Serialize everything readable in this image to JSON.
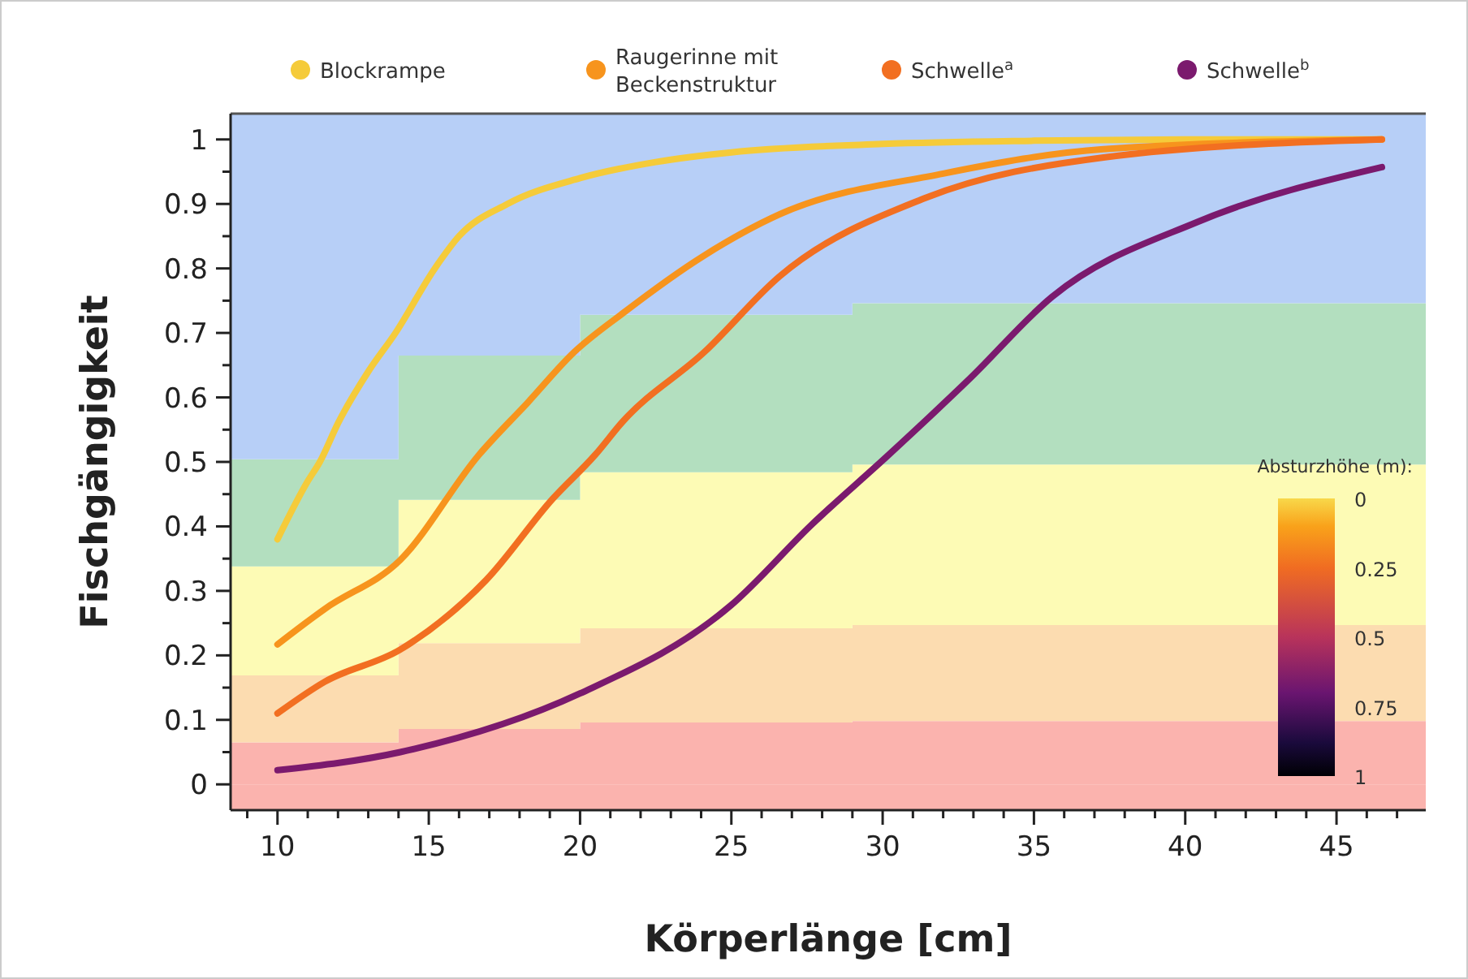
{
  "chart_data": {
    "type": "line",
    "xlabel": "Körperlänge [cm]",
    "ylabel": "Fischgängigkeit",
    "legend": "top",
    "annotations": [
      "Absturzhöhe (m):",
      "0",
      "0.25",
      "0.5",
      "0.75",
      "1"
    ],
    "stacked": true,
    "bands": [
      {
        "axis": "y",
        "from": -0.04,
        "to": 0,
        "color": "#fbb3ae"
      }
    ],
    "xlim": [
      8.45,
      47.95
    ],
    "ylim": [
      -0.04,
      1.04
    ],
    "xticks": [
      {
        "value": 9,
        "label": null
      },
      10,
      {
        "value": 11,
        "label": null
      },
      {
        "value": 12,
        "label": null
      },
      {
        "value": 13,
        "label": null
      },
      {
        "value": 14,
        "label": null
      },
      15,
      {
        "value": 16,
        "label": null
      },
      {
        "value": 17,
        "label": null
      },
      {
        "value": 18,
        "label": null
      },
      {
        "value": 19,
        "label": null
      },
      20,
      {
        "value": 21,
        "label": null
      },
      {
        "value": 22,
        "label": null
      },
      {
        "value": 23,
        "label": null
      },
      {
        "value": 24,
        "label": null
      },
      25,
      {
        "value": 26,
        "label": null
      },
      {
        "value": 27,
        "label": null
      },
      {
        "value": 28,
        "label": null
      },
      {
        "value": 29,
        "label": null
      },
      30,
      {
        "value": 31,
        "label": null
      },
      {
        "value": 32,
        "label": null
      },
      {
        "value": 33,
        "label": null
      },
      {
        "value": 34,
        "label": null
      },
      35,
      {
        "value": 36,
        "label": null
      },
      {
        "value": 37,
        "label": null
      },
      {
        "value": 38,
        "label": null
      },
      {
        "value": 39,
        "label": null
      },
      40,
      {
        "value": 41,
        "label": null
      },
      {
        "value": 42,
        "label": null
      },
      {
        "value": 43,
        "label": null
      },
      {
        "value": 44,
        "label": null
      },
      45,
      {
        "value": 46,
        "label": null
      },
      {
        "value": 47,
        "label": null
      }
    ],
    "yticks": [
      0,
      {
        "value": 0.05,
        "label": null
      },
      0.1,
      {
        "value": 0.15,
        "label": null
      },
      0.2,
      {
        "value": 0.25,
        "label": null
      },
      0.3,
      {
        "value": 0.35,
        "label": null
      },
      0.4,
      {
        "value": 0.45,
        "label": null
      },
      0.5,
      {
        "value": 0.55,
        "label": null
      },
      0.6,
      {
        "value": 0.65,
        "label": null
      },
      0.7,
      {
        "value": 0.75,
        "label": null
      },
      0.8,
      {
        "value": 0.85,
        "label": null
      },
      0.9,
      {
        "value": 0.95,
        "label": null
      },
      1
    ],
    "series": [
      {
        "type": "area",
        "color": "#fbb3ae",
        "x": [
          8.45,
          14,
          14,
          20,
          20,
          29,
          29,
          47.95
        ],
        "values": [
          0.065,
          0.065,
          0.086,
          0.086,
          0.096,
          0.096,
          0.098,
          0.098
        ]
      },
      {
        "type": "area",
        "color": "#fcdcb0",
        "x": [
          8.45,
          14,
          14,
          20,
          20,
          29,
          29,
          47.95
        ],
        "values": [
          0.104,
          0.104,
          0.133,
          0.133,
          0.146,
          0.146,
          0.149,
          0.149
        ]
      },
      {
        "type": "area",
        "color": "#fdfbb5",
        "x": [
          8.45,
          14,
          14,
          20,
          20,
          29,
          29,
          47.95
        ],
        "values": [
          0.169,
          0.169,
          0.222,
          0.222,
          0.242,
          0.242,
          0.249,
          0.249
        ]
      },
      {
        "type": "area",
        "color": "#b3dfbf",
        "x": [
          8.45,
          14,
          14,
          20,
          20,
          29,
          29,
          47.95
        ],
        "values": [
          0.166,
          0.166,
          0.224,
          0.224,
          0.244,
          0.244,
          0.25,
          0.25
        ]
      },
      {
        "type": "area",
        "color": "#b7cff7",
        "x": [
          8.45,
          14,
          14,
          20,
          20,
          29,
          29,
          47.95
        ],
        "values": [
          0.536,
          0.536,
          0.375,
          0.375,
          0.312,
          0.312,
          0.294,
          0.294
        ]
      },
      {
        "type": "line",
        "name": "Blockrampe",
        "color": "#f5cb3a",
        "x": [
          10,
          11,
          11.4,
          12,
          13,
          13.9,
          15.2,
          16,
          17.6,
          20,
          22.5,
          25,
          30,
          35,
          40,
          46.5
        ],
        "values": [
          0.38,
          0.47,
          0.5,
          0.56,
          0.64,
          0.7,
          0.8,
          0.85,
          0.9,
          0.94,
          0.965,
          0.98,
          0.993,
          0.998,
          1.0,
          1.0
        ]
      },
      {
        "type": "line",
        "name": "Raugerinne mit Beckenstruktur",
        "color": "#f7941d",
        "x": [
          10,
          11.56,
          14.06,
          16.66,
          18.27,
          19.8,
          21.4,
          24.1,
          26.6,
          32,
          37.3,
          46.5
        ],
        "values": [
          0.217,
          0.272,
          0.348,
          0.511,
          0.592,
          0.67,
          0.73,
          0.82,
          0.884,
          0.947,
          0.985,
          1.0
        ]
      },
      {
        "type": "line",
        "name": "Schwelle$^{a}$",
        "color": "#f26f21",
        "x": [
          10,
          11.56,
          14.06,
          16.9,
          19.1,
          20.5,
          21.4,
          24.1,
          26.6,
          31.4,
          37.3,
          46.5
        ],
        "values": [
          0.11,
          0.159,
          0.209,
          0.317,
          0.443,
          0.511,
          0.562,
          0.67,
          0.788,
          0.909,
          0.972,
          1.0
        ]
      },
      {
        "type": "line",
        "name": "Schwelle$^{b}$",
        "color": "#7b1a6e",
        "x": [
          10,
          14.06,
          20,
          24.97,
          27.66,
          30.2,
          32.9,
          35.6,
          40.4,
          46.5
        ],
        "values": [
          0.022,
          0.05,
          0.141,
          0.277,
          0.403,
          0.511,
          0.63,
          0.756,
          0.872,
          0.957
        ]
      }
    ]
  }
}
